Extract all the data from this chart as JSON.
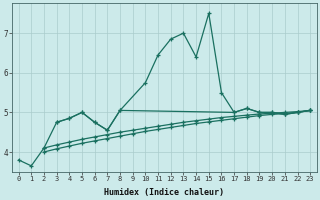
{
  "title": "",
  "xlabel": "Humidex (Indice chaleur)",
  "bg_color": "#cceaea",
  "grid_color": "#aacccc",
  "line_color": "#1a7060",
  "x_values": [
    0,
    1,
    2,
    3,
    4,
    5,
    6,
    7,
    8,
    9,
    10,
    11,
    12,
    13,
    14,
    15,
    16,
    17,
    18,
    19,
    20,
    21,
    22,
    23
  ],
  "line1_x": [
    0,
    1,
    2,
    3,
    4,
    5,
    6,
    7,
    8,
    10,
    11,
    12,
    13,
    14,
    15,
    16,
    17,
    18,
    19,
    20,
    21,
    22,
    23
  ],
  "line1_y": [
    3.8,
    3.65,
    4.1,
    4.75,
    4.85,
    5.0,
    4.75,
    4.55,
    5.05,
    5.75,
    6.45,
    6.85,
    7.0,
    6.4,
    7.5,
    5.5,
    5.0,
    5.1,
    5.0,
    5.0,
    4.95,
    5.0,
    5.05
  ],
  "line2_x": [
    3,
    4,
    5,
    6,
    7,
    8,
    17,
    18,
    19,
    20,
    21,
    22,
    23
  ],
  "line2_y": [
    4.75,
    4.85,
    5.0,
    4.75,
    4.55,
    5.05,
    5.0,
    5.1,
    5.0,
    5.0,
    4.95,
    5.0,
    5.05
  ],
  "line3_x": [
    2,
    3,
    4,
    5,
    6,
    7,
    8,
    9,
    10,
    11,
    12,
    13,
    14,
    15,
    16,
    17,
    18,
    19,
    20,
    21,
    22,
    23
  ],
  "line3_y": [
    4.1,
    4.18,
    4.25,
    4.32,
    4.38,
    4.44,
    4.5,
    4.55,
    4.6,
    4.65,
    4.7,
    4.75,
    4.79,
    4.83,
    4.87,
    4.9,
    4.93,
    4.96,
    4.98,
    5.0,
    5.02,
    5.05
  ],
  "line4_x": [
    2,
    3,
    4,
    5,
    6,
    7,
    8,
    9,
    10,
    11,
    12,
    13,
    14,
    15,
    16,
    17,
    18,
    19,
    20,
    21,
    22,
    23
  ],
  "line4_y": [
    4.0,
    4.08,
    4.15,
    4.22,
    4.28,
    4.34,
    4.4,
    4.46,
    4.52,
    4.57,
    4.62,
    4.67,
    4.72,
    4.76,
    4.8,
    4.84,
    4.88,
    4.92,
    4.95,
    4.97,
    5.0,
    5.05
  ],
  "ylim": [
    3.5,
    7.75
  ],
  "yticks": [
    4,
    5,
    6,
    7
  ],
  "xticks": [
    0,
    1,
    2,
    3,
    4,
    5,
    6,
    7,
    8,
    9,
    10,
    11,
    12,
    13,
    14,
    15,
    16,
    17,
    18,
    19,
    20,
    21,
    22,
    23
  ],
  "xlabel_fontsize": 6.0,
  "tick_fontsize": 5.0,
  "linewidth": 0.9,
  "markersize": 3.5
}
